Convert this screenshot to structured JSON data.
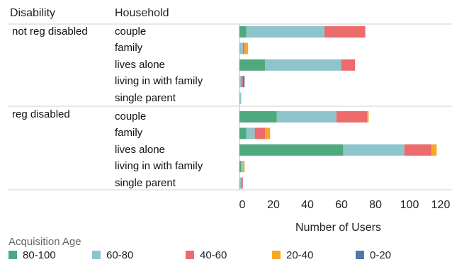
{
  "chart_data": {
    "type": "bar",
    "orientation": "horizontal",
    "stacked": true,
    "column_headers": {
      "group": "Disability",
      "category": "Household"
    },
    "groups": [
      {
        "name": "not reg disabled",
        "rows": [
          {
            "label": "couple",
            "values": {
              "80-100": 4,
              "60-80": 46,
              "40-60": 24,
              "20-40": 0,
              "0-20": 0
            }
          },
          {
            "label": "family",
            "values": {
              "80-100": 0,
              "60-80": 2,
              "40-60": 1,
              "20-40": 2,
              "0-20": 0
            }
          },
          {
            "label": "lives alone",
            "values": {
              "80-100": 15,
              "60-80": 45,
              "40-60": 8,
              "20-40": 0,
              "0-20": 0
            }
          },
          {
            "label": "living in with family",
            "values": {
              "80-100": 0,
              "60-80": 1,
              "40-60": 1,
              "20-40": 0,
              "0-20": 1
            }
          },
          {
            "label": "single parent",
            "values": {
              "80-100": 0,
              "60-80": 1,
              "40-60": 0,
              "20-40": 0,
              "0-20": 0
            }
          }
        ]
      },
      {
        "name": "reg disabled",
        "rows": [
          {
            "label": "couple",
            "values": {
              "80-100": 22,
              "60-80": 35,
              "40-60": 18,
              "20-40": 1,
              "0-20": 0
            }
          },
          {
            "label": "family",
            "values": {
              "80-100": 4,
              "60-80": 5,
              "40-60": 6,
              "20-40": 3,
              "0-20": 0
            }
          },
          {
            "label": "lives alone",
            "values": {
              "80-100": 61,
              "60-80": 36,
              "40-60": 16,
              "20-40": 3,
              "0-20": 0
            }
          },
          {
            "label": "living in with family",
            "values": {
              "80-100": 1,
              "60-80": 1,
              "40-60": 0,
              "20-40": 1,
              "0-20": 0
            }
          },
          {
            "label": "single parent",
            "values": {
              "80-100": 0,
              "60-80": 1,
              "40-60": 1,
              "20-40": 0,
              "0-20": 0
            }
          }
        ]
      }
    ],
    "series": [
      {
        "name": "80-100",
        "color": "#4fa97f"
      },
      {
        "name": "60-80",
        "color": "#8ec4cb"
      },
      {
        "name": "40-60",
        "color": "#ec6b6b"
      },
      {
        "name": "20-40",
        "color": "#f7a82b"
      },
      {
        "name": "0-20",
        "color": "#4e79a7"
      }
    ],
    "legend_title": "Acquisition Age",
    "xlabel": "Number of Users",
    "xlim": [
      0,
      120
    ],
    "xticks": [
      0,
      20,
      40,
      60,
      80,
      100,
      120
    ],
    "legend_position": "bottom"
  }
}
